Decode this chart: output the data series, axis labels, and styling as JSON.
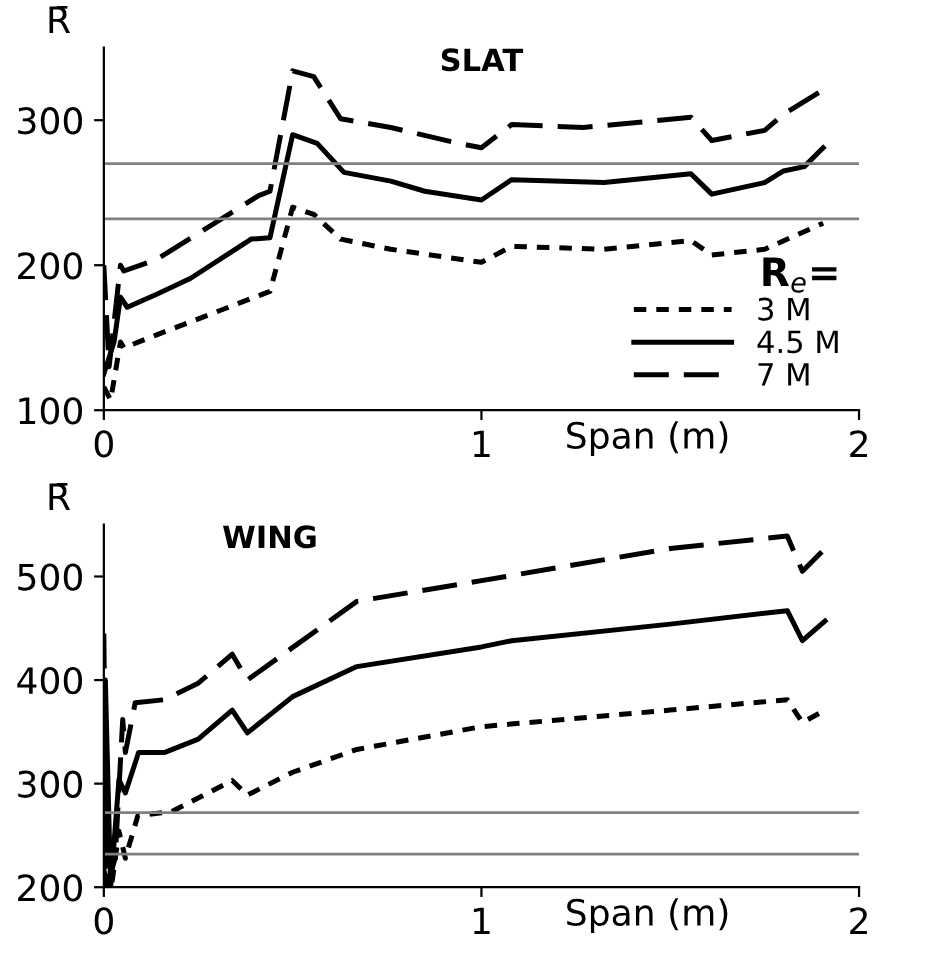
{
  "chart_data": [
    {
      "type": "line",
      "title": "SLAT",
      "ylabel": "R̄",
      "xlabel": "Span (m)",
      "legend_title": "R$_{e}$=",
      "legend": "lower right",
      "grid": false,
      "marker": "none",
      "xlim": [
        0,
        2
      ],
      "xticks": [
        0,
        1,
        2
      ],
      "ylim": [
        100,
        350
      ],
      "yticks": [
        100,
        200,
        300
      ],
      "ref_lines": [
        {
          "axis": "y",
          "value": 270,
          "color": "#808080"
        },
        {
          "axis": "y",
          "value": 232,
          "color": "#808080"
        }
      ],
      "series": [
        {
          "name": "3 M",
          "color": "#000000",
          "line_style": "dotted",
          "x": [
            0,
            0.018,
            0.044,
            0.053,
            0.14,
            0.44,
            0.5,
            0.556,
            0.627,
            0.76,
            1.0,
            1.08,
            1.325,
            1.555,
            1.61,
            1.75,
            1.905
          ],
          "values": [
            116,
            107,
            147,
            143,
            152,
            182,
            240,
            235,
            218,
            211,
            202,
            213,
            211,
            217,
            207,
            211,
            229
          ]
        },
        {
          "name": "4.5 M",
          "color": "#000000",
          "line_style": "solid",
          "x": [
            0,
            0.027,
            0.044,
            0.062,
            0.14,
            0.23,
            0.39,
            0.44,
            0.5,
            0.565,
            0.636,
            0.76,
            0.85,
            1.0,
            1.08,
            1.325,
            1.555,
            1.61,
            1.75,
            1.8,
            1.855,
            1.905
          ],
          "values": [
            125,
            147,
            178,
            171,
            180,
            191,
            218,
            219,
            290,
            284,
            264,
            258,
            251,
            245,
            259,
            257,
            263,
            249,
            257,
            265,
            268,
            281
          ]
        },
        {
          "name": "7 M",
          "color": "#000000",
          "line_style": "dashed",
          "x": [
            0,
            0.014,
            0.044,
            0.053,
            0.14,
            0.41,
            0.44,
            0.5,
            0.556,
            0.627,
            0.76,
            0.94,
            1.0,
            1.08,
            1.27,
            1.555,
            1.61,
            1.75,
            1.8,
            1.905
          ],
          "values": [
            200,
            130,
            200,
            196,
            204,
            248,
            251,
            334,
            330,
            301,
            295,
            284,
            281,
            297,
            295,
            302,
            286,
            293,
            304,
            321
          ]
        }
      ]
    },
    {
      "type": "line",
      "title": "WING",
      "ylabel": "R̄",
      "xlabel": "Span (m)",
      "grid": false,
      "marker": "none",
      "xlim": [
        0,
        2
      ],
      "xticks": [
        0,
        1,
        2
      ],
      "ylim": [
        200,
        550
      ],
      "yticks": [
        200,
        300,
        400,
        500
      ],
      "ref_lines": [
        {
          "axis": "y",
          "value": 272,
          "color": "#808080"
        },
        {
          "axis": "y",
          "value": 232,
          "color": "#808080"
        }
      ],
      "series": [
        {
          "color": "#000000",
          "line_style": "dotted",
          "x": [
            0,
            0.02,
            0.04,
            0.057,
            0.09,
            0.18,
            0.34,
            0.38,
            0.5,
            0.67,
            1.0,
            1.5,
            1.81,
            1.85,
            1.91
          ],
          "values": [
            215,
            200,
            254,
            228,
            269,
            273,
            303,
            289,
            311,
            333,
            355,
            371,
            381,
            359,
            371
          ]
        },
        {
          "color": "#000000",
          "line_style": "solid",
          "x": [
            0,
            0.004,
            0.018,
            0.04,
            0.057,
            0.092,
            0.16,
            0.25,
            0.34,
            0.38,
            0.5,
            0.67,
            1.0,
            1.08,
            1.5,
            1.81,
            1.85,
            1.91
          ],
          "values": [
            200,
            400,
            200,
            304,
            291,
            330,
            330,
            343,
            371,
            349,
            384,
            413,
            432,
            438,
            454,
            467,
            438,
            457
          ]
        },
        {
          "color": "#000000",
          "line_style": "dashed",
          "x": [
            0,
            0.007,
            0.03,
            0.05,
            0.057,
            0.083,
            0.16,
            0.25,
            0.34,
            0.38,
            0.67,
            1.0,
            1.5,
            1.81,
            1.85,
            1.91
          ],
          "values": [
            445,
            200,
            228,
            362,
            330,
            378,
            381,
            397,
            425,
            400,
            476,
            496,
            527,
            539,
            505,
            527
          ]
        }
      ]
    }
  ]
}
